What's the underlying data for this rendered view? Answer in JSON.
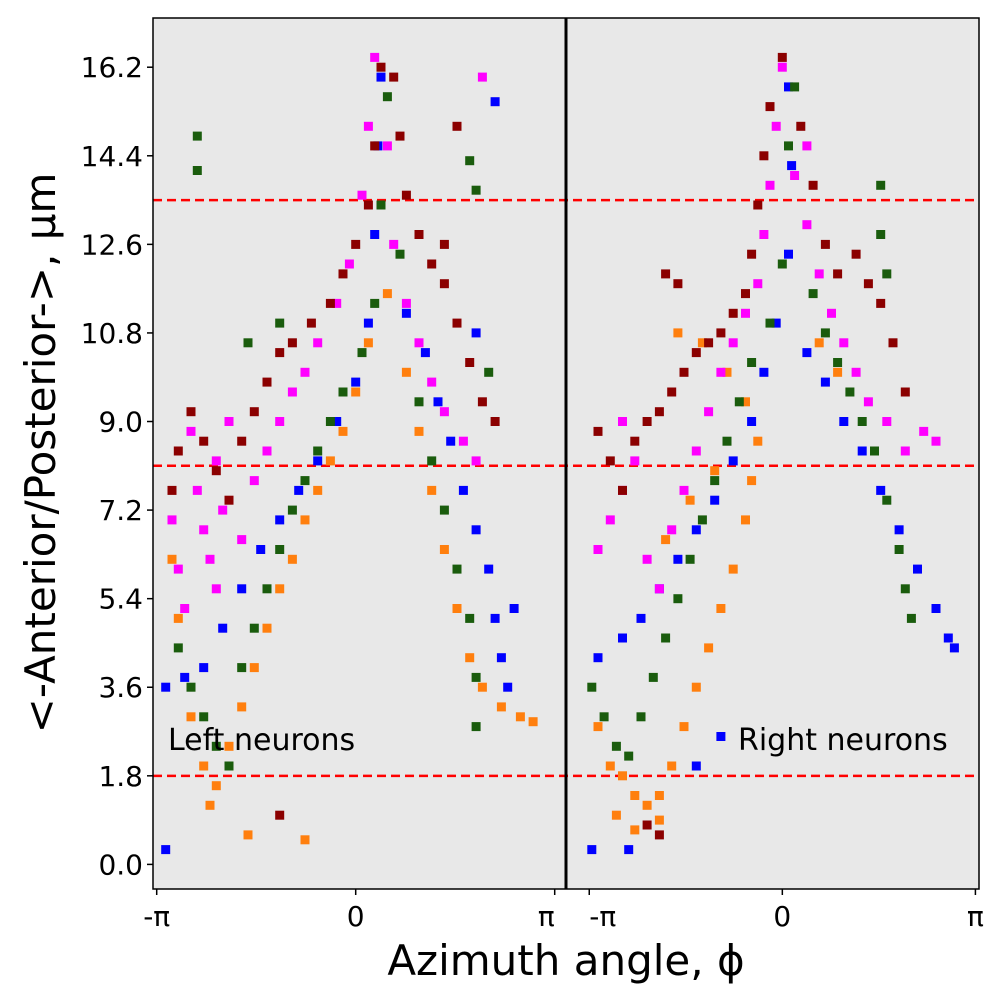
{
  "chart_data": {
    "type": "scatter",
    "xlabel": "Azimuth angle, ϕ",
    "ylabel": "<-Anterior/Posterior->, μm",
    "ylim": [
      -0.5,
      17.2
    ],
    "grid": false,
    "panels": [
      {
        "label": "Left neurons",
        "xlim": [
          -3.2,
          3.32
        ]
      },
      {
        "label": "Right neurons",
        "xlim": [
          -3.52,
          3.2
        ]
      }
    ],
    "x_ticks_left": [
      "-π",
      "0",
      "π"
    ],
    "x_ticks_right": [
      "-π",
      "0",
      "π"
    ],
    "y_ticks": [
      "0.0",
      "1.8",
      "3.6",
      "5.4",
      "7.2",
      "9.0",
      "10.8",
      "12.6",
      "14.4",
      "16.2"
    ],
    "y_tick_values": [
      0,
      1.8,
      3.6,
      5.4,
      7.2,
      9.0,
      10.8,
      12.6,
      14.4,
      16.2
    ],
    "reference_lines_y": [
      1.8,
      8.1,
      13.5
    ],
    "colors": {
      "background": "#e8e8e8",
      "reference_line": "#ff0000",
      "divider": "#000000"
    },
    "series_colors": [
      "#0000ff",
      "#ff7f0e",
      "#1a5c0d",
      "#ff00ff",
      "#8b0000"
    ],
    "series": [
      {
        "color": "#0000ff",
        "left": [
          [
            -3.0,
            0.3
          ],
          [
            -3.0,
            3.6
          ],
          [
            -2.7,
            3.8
          ],
          [
            -2.4,
            4.0
          ],
          [
            -2.1,
            4.8
          ],
          [
            -1.8,
            5.6
          ],
          [
            -1.5,
            6.4
          ],
          [
            -1.2,
            7.0
          ],
          [
            -0.9,
            7.6
          ],
          [
            -0.6,
            8.2
          ],
          [
            -0.3,
            9.0
          ],
          [
            0.0,
            9.8
          ],
          [
            0.2,
            11.0
          ],
          [
            0.3,
            12.8
          ],
          [
            0.35,
            14.6
          ],
          [
            0.4,
            16.0
          ],
          [
            0.8,
            11.2
          ],
          [
            1.1,
            10.4
          ],
          [
            1.3,
            9.4
          ],
          [
            1.5,
            8.6
          ],
          [
            1.7,
            7.6
          ],
          [
            1.9,
            6.8
          ],
          [
            2.1,
            6.0
          ],
          [
            2.2,
            5.0
          ],
          [
            2.3,
            4.2
          ],
          [
            2.4,
            3.6
          ],
          [
            1.9,
            10.8
          ],
          [
            2.2,
            15.5
          ],
          [
            2.5,
            5.2
          ]
        ],
        "right": [
          [
            -3.1,
            0.3
          ],
          [
            -2.5,
            0.3
          ],
          [
            -3.0,
            4.2
          ],
          [
            -2.6,
            4.6
          ],
          [
            -2.3,
            5.0
          ],
          [
            -2.0,
            5.6
          ],
          [
            -1.7,
            6.2
          ],
          [
            -1.4,
            6.8
          ],
          [
            -1.1,
            7.4
          ],
          [
            -0.8,
            8.2
          ],
          [
            -0.5,
            9.0
          ],
          [
            -0.3,
            10.0
          ],
          [
            -0.1,
            11.0
          ],
          [
            0.1,
            12.4
          ],
          [
            0.15,
            14.2
          ],
          [
            0.1,
            15.8
          ],
          [
            0.4,
            10.4
          ],
          [
            0.7,
            9.8
          ],
          [
            1.0,
            9.0
          ],
          [
            1.3,
            8.4
          ],
          [
            1.6,
            7.6
          ],
          [
            1.9,
            6.8
          ],
          [
            2.2,
            6.0
          ],
          [
            2.5,
            5.2
          ],
          [
            2.7,
            4.6
          ],
          [
            2.8,
            4.4
          ],
          [
            -1.4,
            2.0
          ],
          [
            -1.0,
            2.6
          ]
        ]
      },
      {
        "color": "#ff7f0e",
        "left": [
          [
            -2.9,
            6.2
          ],
          [
            -2.8,
            5.0
          ],
          [
            -2.6,
            3.0
          ],
          [
            -2.4,
            2.0
          ],
          [
            -2.2,
            1.6
          ],
          [
            -2.0,
            2.4
          ],
          [
            -1.8,
            3.2
          ],
          [
            -1.6,
            4.0
          ],
          [
            -1.4,
            4.8
          ],
          [
            -1.2,
            5.6
          ],
          [
            -1.0,
            6.2
          ],
          [
            -0.8,
            7.0
          ],
          [
            -0.6,
            7.6
          ],
          [
            -0.4,
            8.2
          ],
          [
            -0.2,
            8.8
          ],
          [
            0.0,
            9.6
          ],
          [
            0.2,
            10.6
          ],
          [
            0.5,
            11.6
          ],
          [
            0.8,
            10.0
          ],
          [
            1.0,
            8.8
          ],
          [
            1.2,
            7.6
          ],
          [
            1.4,
            6.4
          ],
          [
            1.6,
            5.2
          ],
          [
            1.8,
            4.2
          ],
          [
            2.0,
            3.6
          ],
          [
            2.3,
            3.2
          ],
          [
            2.6,
            3.0
          ],
          [
            2.8,
            2.9
          ],
          [
            -1.7,
            0.6
          ],
          [
            -0.8,
            0.5
          ],
          [
            -2.3,
            1.2
          ]
        ],
        "right": [
          [
            -3.0,
            2.8
          ],
          [
            -2.8,
            2.0
          ],
          [
            -2.6,
            1.8
          ],
          [
            -2.4,
            1.4
          ],
          [
            -2.2,
            1.2
          ],
          [
            -2.0,
            1.4
          ],
          [
            -1.8,
            2.0
          ],
          [
            -1.6,
            2.8
          ],
          [
            -1.4,
            3.6
          ],
          [
            -1.2,
            4.4
          ],
          [
            -1.0,
            5.2
          ],
          [
            -0.8,
            6.0
          ],
          [
            -0.6,
            7.0
          ],
          [
            -0.5,
            7.8
          ],
          [
            -0.4,
            8.6
          ],
          [
            -0.6,
            9.4
          ],
          [
            -0.9,
            10.0
          ],
          [
            -1.3,
            10.6
          ],
          [
            -1.7,
            10.8
          ],
          [
            -2.7,
            1.0
          ],
          [
            -2.4,
            0.7
          ],
          [
            -2.0,
            0.9
          ],
          [
            -1.9,
            6.6
          ],
          [
            -1.5,
            7.4
          ],
          [
            -1.1,
            8.0
          ],
          [
            0.6,
            10.6
          ],
          [
            0.9,
            10.0
          ]
        ]
      },
      {
        "color": "#1a5c0d",
        "left": [
          [
            -2.5,
            14.8
          ],
          [
            -2.5,
            14.1
          ],
          [
            -2.8,
            4.4
          ],
          [
            -2.6,
            3.6
          ],
          [
            -2.4,
            3.0
          ],
          [
            -2.2,
            2.4
          ],
          [
            -2.0,
            2.0
          ],
          [
            -1.8,
            4.0
          ],
          [
            -1.6,
            4.8
          ],
          [
            -1.4,
            5.6
          ],
          [
            -1.2,
            6.4
          ],
          [
            -1.0,
            7.2
          ],
          [
            -0.8,
            7.8
          ],
          [
            -0.6,
            8.4
          ],
          [
            -0.4,
            9.0
          ],
          [
            -0.2,
            9.6
          ],
          [
            0.1,
            10.4
          ],
          [
            0.3,
            11.4
          ],
          [
            0.4,
            13.4
          ],
          [
            0.5,
            15.6
          ],
          [
            0.7,
            12.4
          ],
          [
            1.0,
            9.4
          ],
          [
            1.2,
            8.2
          ],
          [
            1.4,
            7.2
          ],
          [
            1.6,
            6.0
          ],
          [
            1.8,
            5.0
          ],
          [
            1.9,
            3.8
          ],
          [
            1.9,
            2.8
          ],
          [
            1.8,
            14.3
          ],
          [
            1.9,
            13.7
          ],
          [
            2.1,
            10.0
          ],
          [
            -1.7,
            10.6
          ],
          [
            -1.2,
            11.0
          ]
        ],
        "right": [
          [
            -3.1,
            3.6
          ],
          [
            -2.9,
            3.0
          ],
          [
            -2.7,
            2.4
          ],
          [
            -2.5,
            2.2
          ],
          [
            -2.3,
            3.0
          ],
          [
            -2.1,
            3.8
          ],
          [
            -1.9,
            4.6
          ],
          [
            -1.7,
            5.4
          ],
          [
            -1.5,
            6.2
          ],
          [
            -1.3,
            7.0
          ],
          [
            -1.1,
            7.8
          ],
          [
            -0.9,
            8.6
          ],
          [
            -0.7,
            9.4
          ],
          [
            -0.5,
            10.2
          ],
          [
            -0.2,
            11.0
          ],
          [
            0.0,
            12.2
          ],
          [
            0.1,
            14.6
          ],
          [
            0.2,
            15.8
          ],
          [
            0.5,
            11.6
          ],
          [
            0.7,
            10.8
          ],
          [
            0.9,
            10.2
          ],
          [
            1.1,
            9.6
          ],
          [
            1.3,
            9.0
          ],
          [
            1.5,
            8.4
          ],
          [
            1.7,
            7.4
          ],
          [
            1.9,
            6.4
          ],
          [
            2.0,
            5.6
          ],
          [
            2.1,
            5.0
          ],
          [
            1.6,
            13.8
          ],
          [
            1.6,
            12.8
          ],
          [
            1.7,
            12.0
          ]
        ]
      },
      {
        "color": "#ff00ff",
        "left": [
          [
            -2.9,
            7.0
          ],
          [
            -2.8,
            6.0
          ],
          [
            -2.7,
            5.2
          ],
          [
            -2.6,
            8.8
          ],
          [
            -2.5,
            7.6
          ],
          [
            -2.4,
            6.8
          ],
          [
            -2.3,
            6.2
          ],
          [
            -2.2,
            5.6
          ],
          [
            -2.1,
            7.2
          ],
          [
            -1.8,
            6.6
          ],
          [
            -1.6,
            7.8
          ],
          [
            -1.4,
            8.4
          ],
          [
            -1.2,
            9.0
          ],
          [
            -1.0,
            9.6
          ],
          [
            -0.8,
            10.0
          ],
          [
            -0.6,
            10.6
          ],
          [
            -0.3,
            11.4
          ],
          [
            -0.1,
            12.2
          ],
          [
            0.1,
            13.6
          ],
          [
            0.2,
            15.0
          ],
          [
            0.3,
            16.4
          ],
          [
            0.5,
            14.6
          ],
          [
            0.6,
            12.6
          ],
          [
            0.8,
            11.4
          ],
          [
            1.0,
            10.6
          ],
          [
            1.2,
            9.8
          ],
          [
            1.4,
            9.2
          ],
          [
            1.7,
            8.6
          ],
          [
            1.9,
            8.2
          ],
          [
            2.0,
            16.0
          ],
          [
            -2.2,
            8.2
          ],
          [
            -2.0,
            9.0
          ]
        ],
        "right": [
          [
            -3.0,
            6.4
          ],
          [
            -2.8,
            7.0
          ],
          [
            -2.6,
            7.6
          ],
          [
            -2.4,
            8.2
          ],
          [
            -2.2,
            6.2
          ],
          [
            -2.0,
            5.6
          ],
          [
            -1.8,
            6.8
          ],
          [
            -1.6,
            7.6
          ],
          [
            -1.4,
            8.4
          ],
          [
            -1.2,
            9.2
          ],
          [
            -1.0,
            10.0
          ],
          [
            -0.8,
            10.6
          ],
          [
            -0.6,
            11.2
          ],
          [
            -0.4,
            11.8
          ],
          [
            -0.3,
            12.8
          ],
          [
            -0.2,
            13.8
          ],
          [
            -0.1,
            15.0
          ],
          [
            0.0,
            16.2
          ],
          [
            0.2,
            14.0
          ],
          [
            0.4,
            13.0
          ],
          [
            0.6,
            12.0
          ],
          [
            0.8,
            11.2
          ],
          [
            1.0,
            10.6
          ],
          [
            1.2,
            10.0
          ],
          [
            1.4,
            9.4
          ],
          [
            1.7,
            9.0
          ],
          [
            2.0,
            8.4
          ],
          [
            2.3,
            8.8
          ],
          [
            2.5,
            8.6
          ],
          [
            0.4,
            14.6
          ],
          [
            -2.6,
            9.0
          ]
        ]
      },
      {
        "color": "#8b0000",
        "left": [
          [
            -2.9,
            7.6
          ],
          [
            -2.8,
            8.4
          ],
          [
            -2.6,
            9.2
          ],
          [
            -2.4,
            8.6
          ],
          [
            -2.2,
            8.0
          ],
          [
            -2.0,
            7.4
          ],
          [
            -1.8,
            8.6
          ],
          [
            -1.6,
            9.2
          ],
          [
            -1.4,
            9.8
          ],
          [
            -1.2,
            10.4
          ],
          [
            -1.0,
            10.6
          ],
          [
            -0.7,
            11.0
          ],
          [
            -0.4,
            11.4
          ],
          [
            -0.2,
            12.0
          ],
          [
            0.0,
            12.6
          ],
          [
            0.2,
            13.4
          ],
          [
            0.3,
            14.6
          ],
          [
            0.4,
            16.2
          ],
          [
            0.6,
            16.0
          ],
          [
            0.7,
            14.8
          ],
          [
            0.8,
            13.6
          ],
          [
            1.0,
            12.8
          ],
          [
            1.2,
            12.2
          ],
          [
            1.4,
            11.8
          ],
          [
            1.6,
            11.0
          ],
          [
            1.8,
            10.2
          ],
          [
            2.0,
            9.4
          ],
          [
            2.2,
            9.0
          ],
          [
            1.4,
            12.6
          ],
          [
            1.6,
            15.0
          ],
          [
            -1.2,
            1.0
          ]
        ],
        "right": [
          [
            -3.0,
            8.8
          ],
          [
            -2.8,
            8.2
          ],
          [
            -2.6,
            7.6
          ],
          [
            -2.4,
            8.6
          ],
          [
            -2.2,
            9.0
          ],
          [
            -2.0,
            9.2
          ],
          [
            -1.8,
            9.6
          ],
          [
            -1.6,
            10.0
          ],
          [
            -1.4,
            10.4
          ],
          [
            -1.2,
            10.6
          ],
          [
            -1.0,
            10.8
          ],
          [
            -0.8,
            11.2
          ],
          [
            -0.6,
            11.6
          ],
          [
            -0.5,
            12.4
          ],
          [
            -0.4,
            13.4
          ],
          [
            -0.3,
            14.4
          ],
          [
            -0.2,
            15.4
          ],
          [
            0.0,
            16.4
          ],
          [
            0.3,
            15.0
          ],
          [
            0.5,
            13.8
          ],
          [
            0.7,
            12.6
          ],
          [
            0.9,
            12.0
          ],
          [
            1.2,
            12.4
          ],
          [
            1.4,
            11.8
          ],
          [
            1.6,
            11.4
          ],
          [
            1.8,
            10.6
          ],
          [
            2.0,
            9.6
          ],
          [
            -1.9,
            12.0
          ],
          [
            -1.7,
            11.8
          ],
          [
            -2.0,
            0.6
          ],
          [
            -2.2,
            0.8
          ]
        ]
      }
    ]
  }
}
